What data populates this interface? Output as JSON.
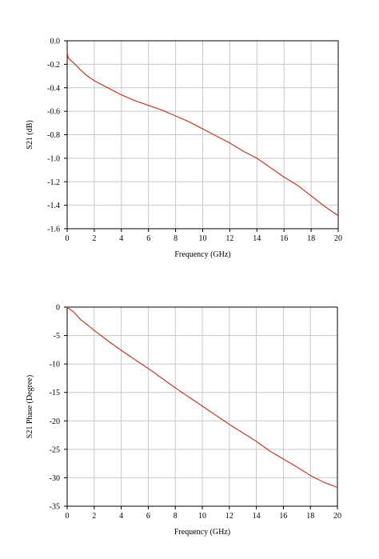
{
  "chart_data": [
    {
      "type": "line",
      "title": "",
      "xlabel": "Frequency (GHz)",
      "ylabel": "S21 (dB)",
      "xlim": [
        0,
        20
      ],
      "ylim": [
        -1.6,
        0.0
      ],
      "xticks": [
        0,
        2,
        4,
        6,
        8,
        10,
        12,
        14,
        16,
        18,
        20
      ],
      "yticks": [
        0.0,
        -0.2,
        -0.4,
        -0.6,
        -0.8,
        -1.0,
        -1.2,
        -1.4,
        -1.6
      ],
      "ytick_labels": [
        "0.0",
        "-0.2",
        "-0.4",
        "-0.6",
        "-0.8",
        "-1.0",
        "-1.2",
        "-1.4",
        "-1.6"
      ],
      "xtick_labels": [
        "0",
        "2",
        "4",
        "6",
        "8",
        "10",
        "12",
        "14",
        "16",
        "18",
        "20"
      ],
      "grid": true,
      "color": "#c0392b",
      "series": [
        {
          "x": [
            0.0,
            0.05,
            0.1,
            0.2,
            0.5,
            1.0,
            1.5,
            2.0,
            3.0,
            4.0,
            5.0,
            6.0,
            7.0,
            8.0,
            9.0,
            10.0,
            11.0,
            12.0,
            13.0,
            14.0,
            15.0,
            16.0,
            17.0,
            18.0,
            19.0,
            20.0
          ],
          "y": [
            -0.09,
            -0.13,
            -0.15,
            -0.16,
            -0.19,
            -0.25,
            -0.3,
            -0.34,
            -0.4,
            -0.46,
            -0.51,
            -0.55,
            -0.59,
            -0.64,
            -0.69,
            -0.75,
            -0.81,
            -0.87,
            -0.94,
            -1.0,
            -1.08,
            -1.16,
            -1.23,
            -1.32,
            -1.41,
            -1.49
          ]
        }
      ]
    },
    {
      "type": "line",
      "title": "",
      "xlabel": "Frequency (GHz)",
      "ylabel": "S21 Phase (Degree)",
      "xlim": [
        0,
        20
      ],
      "ylim": [
        -35,
        0
      ],
      "xticks": [
        0,
        2,
        4,
        6,
        8,
        10,
        12,
        14,
        16,
        18,
        20
      ],
      "yticks": [
        0,
        -5,
        -10,
        -15,
        -20,
        -25,
        -30,
        -35
      ],
      "ytick_labels": [
        "0",
        "-5",
        "-10",
        "-15",
        "-20",
        "-25",
        "-30",
        "-35"
      ],
      "xtick_labels": [
        "0",
        "2",
        "4",
        "6",
        "8",
        "10",
        "12",
        "14",
        "16",
        "18",
        "20"
      ],
      "grid": true,
      "color": "#c0392b",
      "series": [
        {
          "x": [
            0.0,
            0.5,
            1.0,
            1.5,
            2.0,
            3.0,
            4.0,
            5.0,
            6.0,
            7.0,
            8.0,
            9.0,
            10.0,
            11.0,
            12.0,
            13.0,
            14.0,
            15.0,
            16.0,
            17.0,
            18.0,
            19.0,
            20.0
          ],
          "y": [
            0.0,
            -0.9,
            -2.2,
            -3.1,
            -4.1,
            -5.9,
            -7.6,
            -9.2,
            -10.8,
            -12.5,
            -14.2,
            -15.8,
            -17.4,
            -19.0,
            -20.6,
            -22.1,
            -23.6,
            -25.3,
            -26.7,
            -28.1,
            -29.6,
            -30.8,
            -31.7
          ]
        }
      ]
    }
  ]
}
